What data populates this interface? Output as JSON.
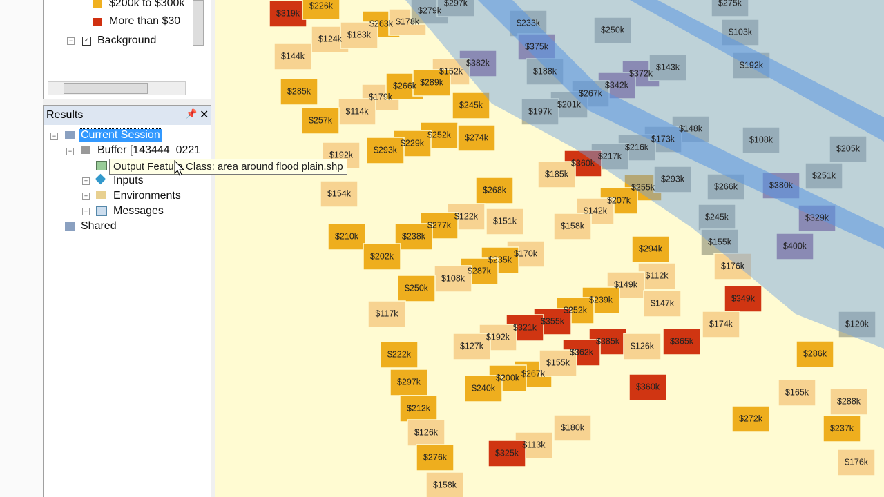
{
  "legend": {
    "items": [
      "$200k to $300k",
      "More than $30"
    ],
    "background": "Background"
  },
  "results": {
    "title": "Results",
    "session": "Current Session",
    "buffer": "Buffer [143444_0221",
    "tooltip": "Output Feature Class: area around flood plain.shp",
    "inputs": "Inputs",
    "environments": "Environments",
    "messages": "Messages",
    "shared": "Shared"
  },
  "map": {
    "labels": [
      "$319k",
      "$226k",
      "$263k",
      "$178k",
      "$279k",
      "$297k",
      "$233k",
      "$250k",
      "$275k",
      "$103k",
      "$375k",
      "$382k",
      "$192k",
      "$124k",
      "$183k",
      "$144k",
      "$152k",
      "$188k",
      "$372k",
      "$143k",
      "$342k",
      "$285k",
      "$179k",
      "$266k",
      "$289k",
      "$267k",
      "$201k",
      "$197k",
      "$114k",
      "$245k",
      "$257k",
      "$252k",
      "$274k",
      "$229k",
      "$293k",
      "$192k",
      "$148k",
      "$108k",
      "$173k",
      "$216k",
      "$205k",
      "$217k",
      "$360k",
      "$251k",
      "$185k",
      "$255k",
      "$293k",
      "$266k",
      "$380k",
      "$268k",
      "$154k",
      "$207k",
      "$142k",
      "$329k",
      "$122k",
      "$277k",
      "$151k",
      "$245k",
      "$158k",
      "$210k",
      "$238k",
      "$155k",
      "$400k",
      "$294k",
      "$170k",
      "$202k",
      "$235k",
      "$176k",
      "$287k",
      "$108k",
      "$112k",
      "$149k",
      "$250k",
      "$349k",
      "$239k",
      "$147k",
      "$117k",
      "$252k",
      "$355k",
      "$321k",
      "$174k",
      "$120k",
      "$192k",
      "$385k",
      "$127k",
      "$126k",
      "$365k",
      "$222k",
      "$362k",
      "$286k",
      "$267k",
      "$155k",
      "$200k",
      "$297k",
      "$240k",
      "$360k",
      "$165k",
      "$288k",
      "$212k",
      "$272k",
      "$180k",
      "$237k",
      "$113k",
      "$126k",
      "$325k",
      "$276k",
      "$176k",
      "$158k"
    ]
  }
}
